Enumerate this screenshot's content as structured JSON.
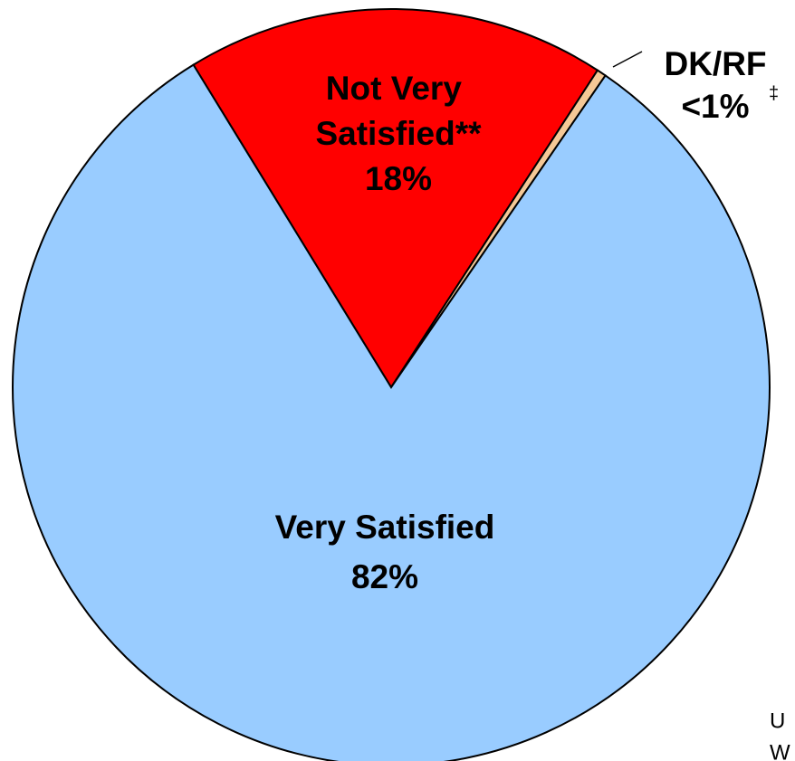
{
  "chart_data": {
    "type": "pie",
    "categories": [
      "Not Very Satisfied**",
      "DK/RF",
      "Very Satisfied"
    ],
    "values": [
      18,
      0.4,
      82
    ],
    "value_labels": [
      "18%",
      "<1%",
      "82%"
    ],
    "colors": [
      "#ff0000",
      "#f5c896",
      "#99ccff"
    ],
    "annotations": [
      "‡",
      "U",
      "W"
    ]
  }
}
